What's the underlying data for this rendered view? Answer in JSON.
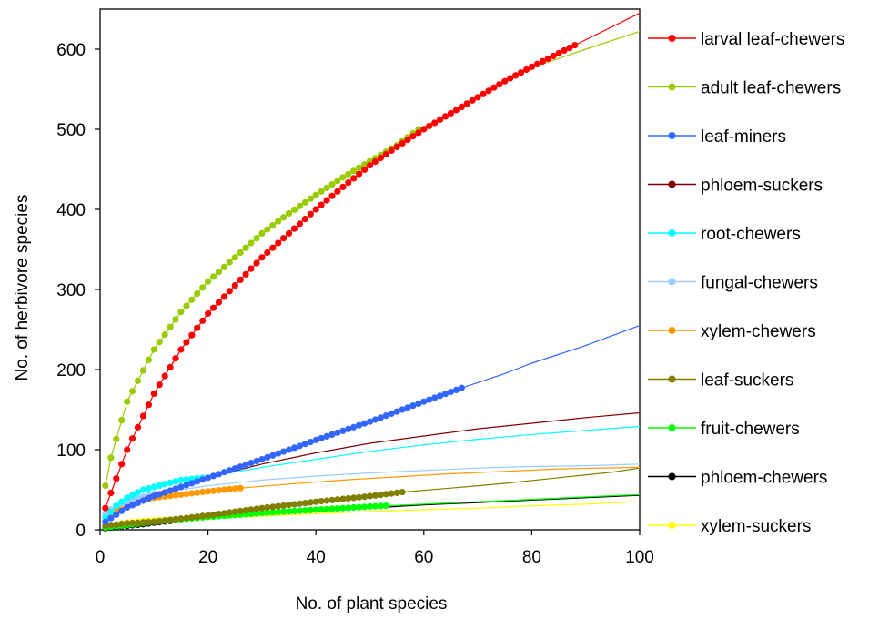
{
  "chart_data": {
    "type": "line",
    "title": "",
    "xlabel": "No. of plant species",
    "ylabel": "No. of herbivore species",
    "xlim": [
      0,
      100
    ],
    "ylim": [
      0,
      650
    ],
    "xticks": [
      0,
      20,
      40,
      60,
      80,
      100
    ],
    "yticks": [
      0,
      100,
      200,
      300,
      400,
      500,
      600
    ],
    "grid": false,
    "legend_position": "right",
    "series": [
      {
        "name": "larval leaf-chewers",
        "color": "#ff0000",
        "marker_until": 88,
        "points": [
          [
            1,
            27
          ],
          [
            2,
            46
          ],
          [
            5,
            100
          ],
          [
            10,
            170
          ],
          [
            15,
            225
          ],
          [
            20,
            270
          ],
          [
            25,
            305
          ],
          [
            30,
            340
          ],
          [
            35,
            370
          ],
          [
            40,
            400
          ],
          [
            45,
            428
          ],
          [
            50,
            455
          ],
          [
            55,
            478
          ],
          [
            60,
            500
          ],
          [
            65,
            520
          ],
          [
            70,
            540
          ],
          [
            75,
            560
          ],
          [
            80,
            578
          ],
          [
            88,
            605
          ],
          [
            100,
            645
          ]
        ]
      },
      {
        "name": "adult leaf-chewers",
        "color": "#99cc00",
        "marker_until": 59,
        "points": [
          [
            1,
            55
          ],
          [
            2,
            90
          ],
          [
            5,
            160
          ],
          [
            10,
            225
          ],
          [
            15,
            272
          ],
          [
            20,
            310
          ],
          [
            25,
            340
          ],
          [
            30,
            370
          ],
          [
            35,
            395
          ],
          [
            40,
            418
          ],
          [
            45,
            440
          ],
          [
            50,
            460
          ],
          [
            55,
            480
          ],
          [
            59,
            500
          ],
          [
            65,
            520
          ],
          [
            70,
            540
          ],
          [
            75,
            560
          ],
          [
            80,
            577
          ],
          [
            90,
            600
          ],
          [
            100,
            622
          ]
        ]
      },
      {
        "name": "leaf-miners",
        "color": "#3366ff",
        "marker_until": 67,
        "points": [
          [
            1,
            10
          ],
          [
            5,
            28
          ],
          [
            10,
            42
          ],
          [
            20,
            65
          ],
          [
            30,
            88
          ],
          [
            40,
            112
          ],
          [
            50,
            135
          ],
          [
            60,
            160
          ],
          [
            67,
            177
          ],
          [
            75,
            195
          ],
          [
            80,
            208
          ],
          [
            90,
            230
          ],
          [
            100,
            255
          ]
        ]
      },
      {
        "name": "phloem-suckers",
        "color": "#800000",
        "marker_until": 0,
        "points": [
          [
            1,
            10
          ],
          [
            5,
            30
          ],
          [
            10,
            45
          ],
          [
            20,
            65
          ],
          [
            30,
            82
          ],
          [
            40,
            96
          ],
          [
            50,
            108
          ],
          [
            60,
            117
          ],
          [
            70,
            126
          ],
          [
            80,
            133
          ],
          [
            90,
            140
          ],
          [
            100,
            146
          ]
        ]
      },
      {
        "name": "root-chewers",
        "color": "#00ffff",
        "marker_until": 19,
        "points": [
          [
            1,
            15
          ],
          [
            3,
            30
          ],
          [
            5,
            40
          ],
          [
            8,
            50
          ],
          [
            12,
            57
          ],
          [
            15,
            62
          ],
          [
            19,
            65
          ],
          [
            30,
            78
          ],
          [
            40,
            88
          ],
          [
            50,
            98
          ],
          [
            60,
            106
          ],
          [
            70,
            113
          ],
          [
            80,
            119
          ],
          [
            90,
            124
          ],
          [
            100,
            129
          ]
        ]
      },
      {
        "name": "fungal-chewers",
        "color": "#99ccff",
        "marker_until": 10,
        "points": [
          [
            1,
            20
          ],
          [
            3,
            30
          ],
          [
            5,
            35
          ],
          [
            10,
            45
          ],
          [
            20,
            55
          ],
          [
            30,
            62
          ],
          [
            40,
            67
          ],
          [
            50,
            71
          ],
          [
            60,
            74
          ],
          [
            70,
            77
          ],
          [
            80,
            79
          ],
          [
            90,
            80
          ],
          [
            100,
            82
          ]
        ]
      },
      {
        "name": "xylem-chewers",
        "color": "#ff9900",
        "marker_until": 26,
        "points": [
          [
            1,
            10
          ],
          [
            3,
            25
          ],
          [
            5,
            32
          ],
          [
            10,
            40
          ],
          [
            15,
            44
          ],
          [
            20,
            48
          ],
          [
            26,
            52
          ],
          [
            35,
            57
          ],
          [
            45,
            62
          ],
          [
            55,
            66
          ],
          [
            65,
            70
          ],
          [
            75,
            73
          ],
          [
            85,
            76
          ],
          [
            100,
            78
          ]
        ]
      },
      {
        "name": "leaf-suckers",
        "color": "#808000",
        "marker_until": 56,
        "points": [
          [
            1,
            5
          ],
          [
            5,
            8
          ],
          [
            10,
            10
          ],
          [
            15,
            14
          ],
          [
            20,
            18
          ],
          [
            30,
            27
          ],
          [
            40,
            35
          ],
          [
            50,
            42
          ],
          [
            56,
            47
          ],
          [
            65,
            52
          ],
          [
            75,
            58
          ],
          [
            85,
            65
          ],
          [
            95,
            72
          ],
          [
            100,
            77
          ]
        ]
      },
      {
        "name": "fruit-chewers",
        "color": "#00ff00",
        "marker_until": 53,
        "points": [
          [
            1,
            3
          ],
          [
            5,
            6
          ],
          [
            10,
            10
          ],
          [
            15,
            13
          ],
          [
            20,
            16
          ],
          [
            30,
            21
          ],
          [
            40,
            25
          ],
          [
            50,
            29
          ],
          [
            53,
            30
          ],
          [
            60,
            32
          ],
          [
            70,
            35
          ],
          [
            80,
            38
          ],
          [
            90,
            41
          ],
          [
            100,
            44
          ]
        ]
      },
      {
        "name": "phloem-chewers",
        "color": "#000000",
        "marker_until": 13,
        "points": [
          [
            1,
            2
          ],
          [
            3,
            4
          ],
          [
            5,
            5
          ],
          [
            8,
            7
          ],
          [
            10,
            9
          ],
          [
            13,
            11
          ],
          [
            20,
            15
          ],
          [
            30,
            19
          ],
          [
            40,
            23
          ],
          [
            50,
            27
          ],
          [
            60,
            31
          ],
          [
            70,
            34
          ],
          [
            80,
            37
          ],
          [
            90,
            40
          ],
          [
            100,
            43
          ]
        ]
      },
      {
        "name": "xylem-suckers",
        "color": "#ffff00",
        "marker_until": 14,
        "points": [
          [
            1,
            4
          ],
          [
            3,
            7
          ],
          [
            5,
            9
          ],
          [
            8,
            11
          ],
          [
            11,
            12
          ],
          [
            14,
            13
          ],
          [
            20,
            14
          ],
          [
            30,
            17
          ],
          [
            40,
            20
          ],
          [
            50,
            23
          ],
          [
            60,
            25
          ],
          [
            70,
            27
          ],
          [
            80,
            30
          ],
          [
            90,
            32
          ],
          [
            100,
            35
          ]
        ]
      }
    ]
  }
}
